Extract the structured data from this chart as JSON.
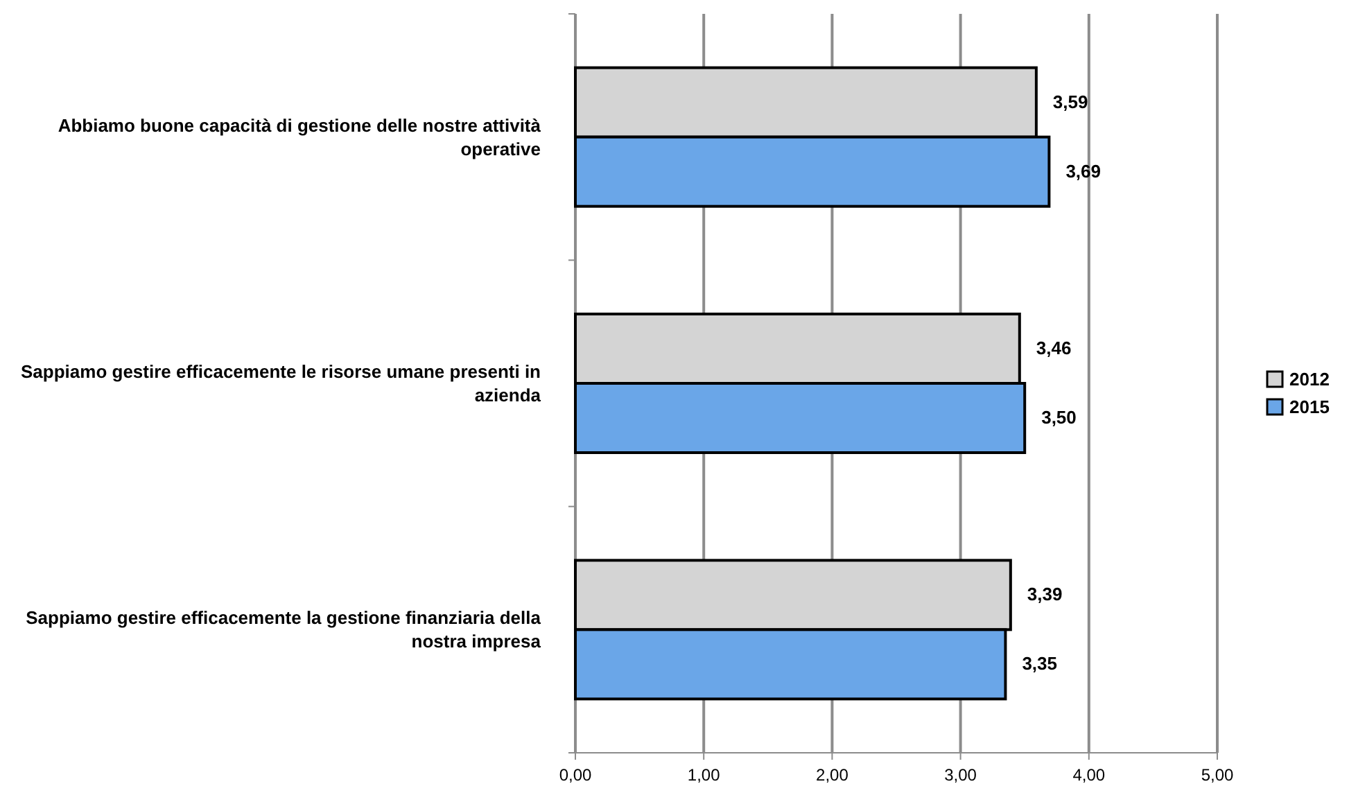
{
  "chart_data": {
    "type": "bar",
    "orientation": "horizontal",
    "categories": [
      "Abbiamo buone capacità di gestione delle nostre attività operative",
      "Sappiamo gestire efficacemente le risorse umane presenti in azienda",
      "Sappiamo gestire efficacemente la gestione finanziaria della nostra impresa"
    ],
    "series": [
      {
        "name": "2012",
        "color": "#d4d4d4",
        "values": [
          3.59,
          3.46,
          3.39
        ],
        "value_labels": [
          "3,59",
          "3,46",
          "3,39"
        ]
      },
      {
        "name": "2015",
        "color": "#6aa6e8",
        "values": [
          3.69,
          3.5,
          3.35
        ],
        "value_labels": [
          "3,69",
          "3,50",
          "3,35"
        ]
      }
    ],
    "xlim": [
      0,
      5
    ],
    "xticks": [
      {
        "value": 0,
        "label": "0,00"
      },
      {
        "value": 1,
        "label": "1,00"
      },
      {
        "value": 2,
        "label": "2,00"
      },
      {
        "value": 3,
        "label": "3,00"
      },
      {
        "value": 4,
        "label": "4,00"
      },
      {
        "value": 5,
        "label": "5,00"
      }
    ],
    "grid": "x",
    "legend": "right"
  }
}
